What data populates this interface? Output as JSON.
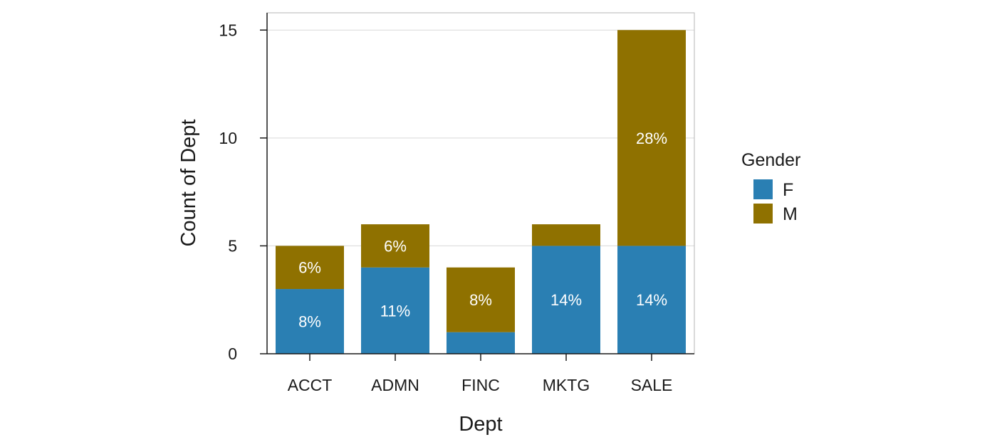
{
  "chart_data": {
    "type": "bar",
    "stacked": true,
    "title": "",
    "xlabel": "Dept",
    "ylabel": "Count of Dept",
    "categories": [
      "ACCT",
      "ADMN",
      "FINC",
      "MKTG",
      "SALE"
    ],
    "ylim": [
      0,
      15.8
    ],
    "yticks": [
      0,
      5,
      10,
      15
    ],
    "grid": "horizontal",
    "legend": {
      "title": "Gender",
      "position": "right"
    },
    "series": [
      {
        "name": "F",
        "color": "#2a7fb3",
        "values": [
          3,
          4,
          1,
          5,
          5
        ],
        "labels": [
          "8%",
          "11%",
          "",
          "14%",
          "14%"
        ]
      },
      {
        "name": "M",
        "color": "#8f7100",
        "values": [
          2,
          2,
          3,
          1,
          10
        ],
        "labels": [
          "6%",
          "6%",
          "8%",
          "",
          "28%"
        ]
      }
    ]
  }
}
